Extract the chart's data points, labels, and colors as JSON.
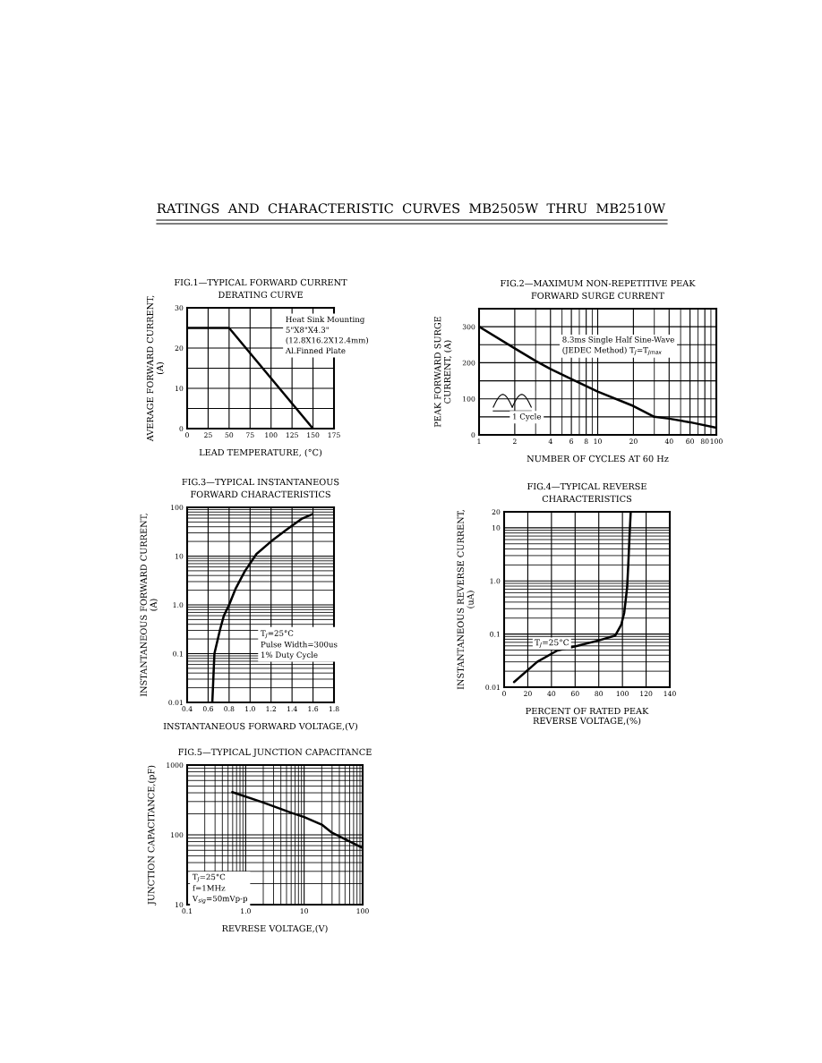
{
  "chart_data": [
    {
      "type": "line",
      "title": "FIG.1—TYPICAL FORWARD CURRENT\nDERATING CURVE",
      "xlabel": "LEAD TEMPERATURE, (°C)",
      "ylabel": "AVERAGE FORWARD CURRENT,\n(A)",
      "annotations": [
        "RATINGS  AND  CHARACTERISTIC  CURVES  MB2505W  THRU  MB2510W",
        "Heat Sink Mounting\n5\"X8\"X4.3\"\n(12.8X16.2X12.4mm)\nAl.Finned Plate"
      ],
      "series": [
        {
          "color": "#000000",
          "x": [
            0,
            50,
            150
          ],
          "values": [
            25,
            25,
            0
          ]
        }
      ],
      "xlim": [
        0,
        175
      ],
      "ylim": [
        0,
        30
      ],
      "xticks": [
        0,
        25,
        50,
        75,
        100,
        125,
        150,
        175
      ],
      "yticks": [
        0,
        {
          "value": 5,
          "label": null
        },
        10,
        {
          "value": 15,
          "label": null
        },
        20,
        {
          "value": 25,
          "label": null
        },
        30
      ],
      "grid": true
    },
    {
      "type": "line",
      "title": "FIG.2—MAXIMUM NON-REPETITIVE PEAK\nFORWARD SURGE CURRENT",
      "xlabel": "NUMBER OF CYCLES AT 60 Hz",
      "ylabel": "PEAK FORWARD SURGE\nCURRENT, (A)",
      "annotations": [
        "8.3ms Single Half Sine-Wave\n(JEDEC Method) T$_{J}$=T$_{Jmax}$",
        "1 Cycle"
      ],
      "series": [
        {
          "color": "#000000",
          "x": [
            1,
            2,
            3,
            4,
            6,
            10,
            20,
            30,
            40,
            60,
            100
          ],
          "values": [
            300,
            240,
            205,
            183,
            155,
            120,
            80,
            50,
            45,
            35,
            20
          ]
        }
      ],
      "log": "x",
      "xlim": [
        1,
        100
      ],
      "ylim": [
        0,
        350
      ],
      "xticks": [
        1,
        2,
        4,
        6,
        8,
        10,
        20,
        40,
        60,
        80,
        100
      ],
      "yticks": [
        0,
        {
          "value": 50,
          "label": null
        },
        100,
        {
          "value": 150,
          "label": null
        },
        200,
        {
          "value": 250,
          "label": null
        },
        300
      ],
      "grid": true
    },
    {
      "type": "line",
      "title": "FIG.3—TYPICAL INSTANTANEOUS\nFORWARD CHARACTERISTICS",
      "xlabel": "INSTANTANEOUS FORWARD VOLTAGE,(V)",
      "ylabel": "INSTANTANEOUS FORWARD CURRENT,\n(A)",
      "annotations": [
        "T$_{J}$=25°C\nPulse Width=300us\n1% Duty Cycle"
      ],
      "series": [
        {
          "color": "#000000",
          "x": [
            0.64,
            0.66,
            0.715,
            0.75,
            0.8,
            0.86,
            0.95,
            1.06,
            1.2,
            1.35,
            1.49,
            1.59
          ],
          "values": [
            0.01,
            0.1,
            0.32,
            0.6,
            1.0,
            2.1,
            4.9,
            11,
            20,
            35,
            58,
            72
          ]
        }
      ],
      "log": "y",
      "xlim": [
        0.4,
        1.8
      ],
      "ylim": [
        0.01,
        100
      ],
      "xticks": [
        0.4,
        0.6,
        0.8,
        {
          "value": 1.0,
          "label": "1.0"
        },
        1.2,
        1.4,
        1.6,
        1.8
      ],
      "yticks": [
        0.01,
        0.1,
        {
          "value": 1,
          "label": "1.0"
        },
        10,
        100
      ],
      "grid": true
    },
    {
      "type": "line",
      "title": "FIG.4—TYPICAL REVERSE\nCHARACTERISTICS",
      "xlabel": "PERCENT OF RATED PEAK\nREVERSE VOLTAGE,(%)",
      "ylabel": "INSTANTANEOUS REVERSE CURRENT,\n(uA)",
      "annotations": [
        {
          "text": "T$_{J}$=25°C",
          "x": 55,
          "y": 0.055
        }
      ],
      "series": [
        {
          "color": "#000000",
          "x": [
            8.4,
            28,
            45,
            62,
            81,
            94,
            99,
            101.5,
            104,
            105,
            106,
            107
          ],
          "values": [
            0.0125,
            0.03,
            0.049,
            0.06,
            0.077,
            0.094,
            0.15,
            0.25,
            0.77,
            2.2,
            7.2,
            20
          ]
        }
      ],
      "log": "y",
      "xlim": [
        0,
        140
      ],
      "ylim": [
        0.01,
        20
      ],
      "xticks": [
        0,
        20,
        40,
        60,
        80,
        100,
        120,
        140
      ],
      "yticks": [
        0.01,
        0.1,
        {
          "value": 1,
          "label": "1.0"
        },
        10,
        20
      ],
      "grid": true
    },
    {
      "type": "line",
      "title": "FIG.5—TYPICAL JUNCTION CAPACITANCE",
      "xlabel": "REVRESE VOLTAGE,(V)",
      "ylabel": "JUNCTION CAPACITANCE,(pF)",
      "annotations": [
        "T$_{J}$=25°C\nf=1MHz\nV$_{sig}$=50mVp-p"
      ],
      "series": [
        {
          "color": "#000000",
          "x": [
            0.59,
            1.9,
            6.2,
            10,
            20,
            30,
            100
          ],
          "values": [
            410,
            295,
            205,
            180,
            140,
            107,
            65
          ]
        }
      ],
      "log": "xy",
      "xlim": [
        0.1,
        100
      ],
      "ylim": [
        10,
        1000
      ],
      "xticks": [
        0.1,
        {
          "value": 1,
          "label": "1.0"
        },
        10,
        100
      ],
      "yticks": [
        10,
        100,
        1000
      ],
      "grid": true
    }
  ]
}
